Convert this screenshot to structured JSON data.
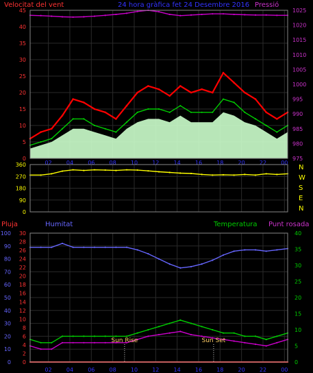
{
  "header": {
    "wind_label": "Velocitat del vent",
    "title": "24 hora gràfica fet 24 Desembre 2016",
    "pressure_label": "Pressió"
  },
  "colors": {
    "wind_gust": "#ff0000",
    "wind_avg": "#00cc00",
    "wind_fill": "#ccffcc",
    "pressure": "#cc00cc",
    "direction": "#ffff00",
    "rain": "#ff3333",
    "humidity": "#6666ff",
    "temperature": "#00cc00",
    "dewpoint": "#cc00cc",
    "axis_wind": "#ff3333",
    "axis_pressure": "#cc33cc",
    "grid": "#2a2a2a"
  },
  "x_ticks": [
    "02",
    "04",
    "06",
    "08",
    "10",
    "12",
    "14",
    "16",
    "18",
    "20",
    "22",
    "00"
  ],
  "chart_data": [
    {
      "type": "line",
      "name": "wind",
      "ylim_left": [
        0,
        45
      ],
      "left_ticks": [
        "45",
        "40",
        "35",
        "30",
        "25",
        "20",
        "15",
        "10",
        "5",
        "0"
      ],
      "ylim_right": [
        975,
        1025
      ],
      "right_ticks": [
        "1025",
        "1020",
        "1015",
        "1010",
        "1005",
        "1000",
        "995",
        "990",
        "985",
        "980",
        "975"
      ],
      "x": [
        0,
        1,
        2,
        3,
        4,
        5,
        6,
        7,
        8,
        9,
        10,
        11,
        12,
        13,
        14,
        15,
        16,
        17,
        18,
        19,
        20,
        21,
        22,
        23,
        24
      ],
      "series": [
        {
          "values": [
            6,
            8,
            9,
            13,
            18,
            17,
            15,
            14,
            12,
            16,
            20,
            22,
            21,
            19,
            22,
            20,
            21,
            20,
            26,
            23,
            20,
            18,
            14,
            12,
            14
          ]
        },
        {
          "values": [
            4,
            5,
            6,
            9,
            12,
            12,
            10,
            9,
            8,
            11,
            14,
            15,
            15,
            14,
            16,
            14,
            14,
            14,
            18,
            17,
            14,
            12,
            10,
            8,
            10
          ]
        },
        {
          "values": [
            3,
            4,
            5,
            7,
            9,
            9,
            8,
            7,
            6,
            9,
            11,
            12,
            12,
            11,
            13,
            11,
            11,
            11,
            14,
            13,
            11,
            10,
            8,
            6,
            8
          ]
        },
        {
          "values": [
            1023.3,
            1023.2,
            1023.0,
            1022.8,
            1022.7,
            1022.8,
            1023.0,
            1023.3,
            1023.6,
            1024.0,
            1024.6,
            1025.0,
            1024.5,
            1023.6,
            1023.2,
            1023.4,
            1023.6,
            1023.8,
            1023.8,
            1023.6,
            1023.5,
            1023.4,
            1023.4,
            1023.3,
            1023.3
          ]
        }
      ]
    },
    {
      "type": "line",
      "name": "wind direction",
      "ylim": [
        0,
        360
      ],
      "left_ticks": [
        "360",
        "270",
        "180",
        "90",
        "0"
      ],
      "right_labels": [
        "N",
        "W",
        "S",
        "E",
        "N"
      ],
      "x": [
        0,
        1,
        2,
        3,
        4,
        5,
        6,
        7,
        8,
        9,
        10,
        11,
        12,
        13,
        14,
        15,
        16,
        17,
        18,
        19,
        20,
        21,
        22,
        23,
        24
      ],
      "values": [
        280,
        280,
        290,
        310,
        320,
        315,
        320,
        318,
        315,
        320,
        318,
        312,
        305,
        300,
        295,
        292,
        285,
        280,
        282,
        280,
        285,
        280,
        290,
        285,
        290
      ]
    },
    {
      "type": "line",
      "name": "humidity temperature",
      "labels": {
        "rain": "Pluja",
        "humidity": "Humitat",
        "temperature": "Temperatura",
        "dewpoint": "Punt rosada"
      },
      "humidity_ticks": [
        "100",
        "90",
        "80",
        "70",
        "60",
        "50",
        "40",
        "30",
        "20",
        "10",
        "0"
      ],
      "rain_ticks": [
        "30",
        "28",
        "26",
        "24",
        "22",
        "20",
        "18",
        "16",
        "14",
        "12",
        "10",
        "8",
        "6",
        "4",
        "2",
        "0"
      ],
      "temp_ticks": [
        "40",
        "35",
        "30",
        "25",
        "20",
        "15",
        "10",
        "5",
        "0"
      ],
      "humidity_range": [
        0,
        100
      ],
      "temperature_range": [
        0,
        40
      ],
      "rain_range": [
        0,
        30
      ],
      "x": [
        0,
        1,
        2,
        3,
        4,
        5,
        6,
        7,
        8,
        9,
        10,
        11,
        12,
        13,
        14,
        15,
        16,
        17,
        18,
        19,
        20,
        21,
        22,
        23,
        24
      ],
      "series": [
        {
          "values": [
            89,
            89,
            89,
            92,
            89,
            89,
            89,
            89,
            89,
            89,
            87,
            84,
            80,
            76,
            73,
            74,
            76,
            79,
            83,
            86,
            87,
            87,
            86,
            87,
            88
          ]
        },
        {
          "values": [
            7,
            6,
            6,
            8,
            8,
            8,
            8,
            8,
            8,
            8,
            9,
            10,
            11,
            12,
            13,
            12,
            11,
            10,
            9,
            9,
            8,
            8,
            7,
            8,
            9
          ]
        },
        {
          "values": [
            5,
            4,
            4,
            6,
            6,
            6,
            6,
            6,
            6,
            6,
            7,
            8,
            8.5,
            9,
            9.5,
            8.5,
            8,
            7.5,
            7,
            6.5,
            6,
            5.5,
            5,
            6,
            7
          ]
        },
        {
          "values": [
            0,
            0,
            0,
            0,
            0,
            0,
            0,
            0,
            0,
            0,
            0,
            0,
            0,
            0,
            0,
            0,
            0,
            0,
            0,
            0,
            0,
            0,
            0,
            0,
            0
          ]
        }
      ],
      "annotations": [
        "Sun Rise",
        "Sun Set"
      ]
    }
  ]
}
